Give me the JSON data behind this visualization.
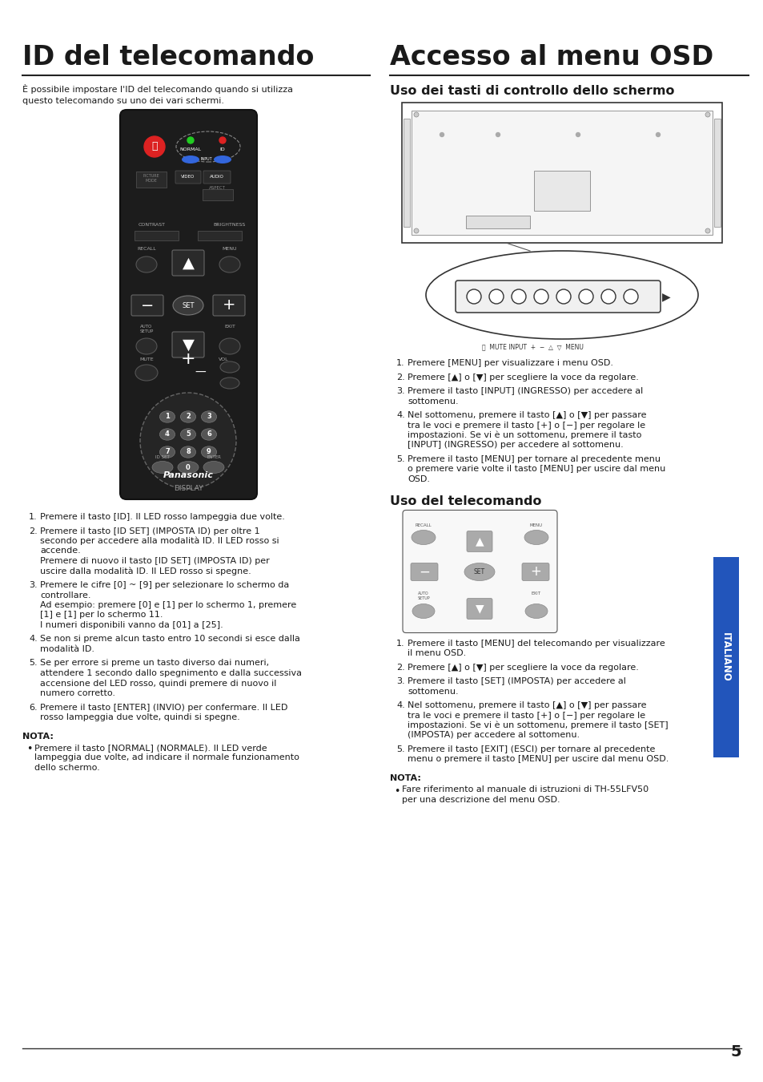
{
  "bg_color": "#ffffff",
  "left_title": "ID del telecomando",
  "right_title": "Accesso al menu OSD",
  "left_intro": "È possibile impostare l'ID del telecomando quando si utilizza\nquesto telecomando su uno dei vari schermi.",
  "left_items": [
    [
      "Premere il tasto [",
      "ID",
      "]. Il LED rosso lampeggia due volte."
    ],
    [
      "Premere il tasto [",
      "ID SET",
      "] (",
      "IMPOSTA ID",
      ") per oltre 1\nsecondo per accedere alla modalità ID. Il LED rosso si\naccende.\nPremere di nuovo il tasto [",
      "ID SET",
      "] (",
      "IMPOSTA ID",
      ") per\nuscire dalla modalità ID. Il LED rosso si spegne."
    ],
    [
      "Premere le cifre [",
      "0",
      "] ~ [",
      "9",
      "] per selezionare lo schermo da\ncontrollare.\nAd esempio: premere [",
      "0",
      "] e [",
      "1",
      "] per lo schermo ",
      "1",
      ", premere\n[",
      "1",
      "] e [",
      "1",
      "] per lo schermo 11.\nI numeri disponibili vanno da [",
      "01",
      "] a [",
      "25",
      "]."
    ],
    [
      "Se non si preme alcun tasto entro 10 secondi si esce dalla\nmodalità ID."
    ],
    [
      "Se per errore si preme un tasto diverso dai numeri,\nattendere 1 secondo dallo spegnimento e dalla successiva\naccensione del LED rosso, quindi premere di nuovo il\nnumero corretto."
    ],
    [
      "Premere il tasto [",
      "ENTER",
      "] (",
      "INVIO",
      ") per confermare. Il LED\nrosso lampeggia due volte, quindi si spegne."
    ]
  ],
  "left_items_plain": [
    "Premere il tasto [ID]. Il LED rosso lampeggia due volte.",
    "Premere il tasto [ID SET] (IMPOSTA ID) per oltre 1\nsecondo per accedere alla modalità ID. Il LED rosso si\naccende.\nPremere di nuovo il tasto [ID SET] (IMPOSTA ID) per\nuscire dalla modalità ID. Il LED rosso si spegne.",
    "Premere le cifre [0] ~ [9] per selezionare lo schermo da\ncontrollare.\nAd esempio: premere [0] e [1] per lo schermo 1, premere\n[1] e [1] per lo schermo 11.\nI numeri disponibili vanno da [01] a [25].",
    "Se non si preme alcun tasto entro 10 secondi si esce dalla\nmodalità ID.",
    "Se per errore si preme un tasto diverso dai numeri,\nattendere 1 secondo dallo spegnimento e dalla successiva\naccensione del LED rosso, quindi premere di nuovo il\nnumero corretto.",
    "Premere il tasto [ENTER] (INVIO) per confermare. Il LED\nrosso lampeggia due volte, quindi si spegne."
  ],
  "left_nota_title": "NOTA:",
  "left_nota": "Premere il tasto [NORMAL] (NORMALE). Il LED verde\nlampeggia due volte, ad indicare il normale funzionamento\ndello schermo.",
  "right_subtitle1": "Uso dei tasti di controllo dello schermo",
  "right_items1_plain": [
    "Premere [MENU] per visualizzare i menu OSD.",
    "Premere [▲] o [▼] per scegliere la voce da regolare.",
    "Premere il tasto [INPUT] (INGRESSO) per accedere al\nsottomenu.",
    "Nel sottomenu, premere il tasto [▲] o [▼] per passare\ntra le voci e premere il tasto [+] o [−] per regolare le\nimpostazioni. Se vi è un sottomenu, premere il tasto\n[INPUT] (INGRESSO) per accedere al sottomenu.",
    "Premere il tasto [MENU] per tornare al precedente menu\no premere varie volte il tasto [MENU] per uscire dal menu\nOSD."
  ],
  "right_subtitle2": "Uso del telecomando",
  "right_items2_plain": [
    "Premere il tasto [MENU] del telecomando per visualizzare\nil menu OSD.",
    "Premere [▲] o [▼] per scegliere la voce da regolare.",
    "Premere il tasto [SET] (IMPOSTA) per accedere al\nsottomenu.",
    "Nel sottomenu, premere il tasto [▲] o [▼] per passare\ntra le voci e premere il tasto [+] o [−] per regolare le\nimpostazioni. Se vi è un sottomenu, premere il tasto [SET]\n(IMPOSTA) per accedere al sottomenu.",
    "Premere il tasto [EXIT] (ESCI) per tornare al precedente\nmenu o premere il tasto [MENU] per uscire dal menu OSD."
  ],
  "right_nota_title": "NOTA:",
  "right_nota": "Fare riferimento al manuale di istruzioni di TH-55LFV50\nper una descrizione del menu OSD.",
  "italiano_text": "ITALIANO",
  "page_number": "5",
  "body_fontsize": 8.0,
  "title_fontsize": 24,
  "subtitle_fontsize": 11.5
}
